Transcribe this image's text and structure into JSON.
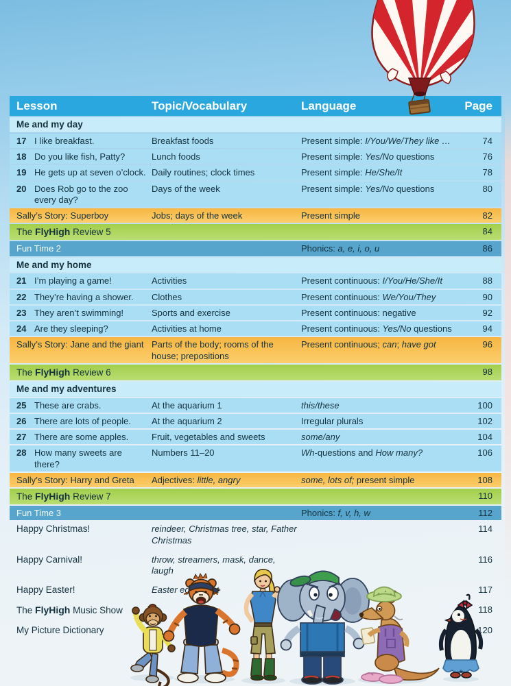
{
  "header": {
    "lesson": "Lesson",
    "topic": "Topic/Vocabulary",
    "language": "Language",
    "page": "Page"
  },
  "rows": [
    {
      "type": "section",
      "label": [
        {
          "t": "Me and my day"
        }
      ]
    },
    {
      "type": "lesson",
      "num": "17",
      "title": [
        {
          "t": "I like breakfast."
        }
      ],
      "topic": [
        {
          "t": "Breakfast foods"
        }
      ],
      "lang": [
        {
          "t": "Present simple: "
        },
        {
          "t": "I/You/We/They like …",
          "i": true
        }
      ],
      "page": "74"
    },
    {
      "type": "lesson",
      "num": "18",
      "title": [
        {
          "t": "Do you like fish, Patty?"
        }
      ],
      "topic": [
        {
          "t": "Lunch foods"
        }
      ],
      "lang": [
        {
          "t": "Present simple: "
        },
        {
          "t": "Yes/No",
          "i": true
        },
        {
          "t": " questions"
        }
      ],
      "page": "76"
    },
    {
      "type": "lesson",
      "num": "19",
      "title": [
        {
          "t": "He gets up at seven o’clock."
        }
      ],
      "topic": [
        {
          "t": "Daily routines; clock times"
        }
      ],
      "lang": [
        {
          "t": "Present simple: "
        },
        {
          "t": "He/She/It",
          "i": true
        }
      ],
      "page": "78"
    },
    {
      "type": "lesson",
      "num": "20",
      "title": [
        {
          "t": "Does Rob go to the zoo every day?"
        }
      ],
      "topic": [
        {
          "t": "Days of the week"
        }
      ],
      "lang": [
        {
          "t": "Present simple: "
        },
        {
          "t": "Yes/No",
          "i": true
        },
        {
          "t": " questions"
        }
      ],
      "page": "80"
    },
    {
      "type": "story",
      "label": [
        {
          "t": "Sally’s Story: Superboy"
        }
      ],
      "topic": [
        {
          "t": "Jobs; days of the week"
        }
      ],
      "lang": [
        {
          "t": "Present simple"
        }
      ],
      "page": "82"
    },
    {
      "type": "review",
      "label": [
        {
          "t": "The "
        },
        {
          "t": "FlyHigh",
          "b": true
        },
        {
          "t": " Review 5"
        }
      ],
      "page": "84"
    },
    {
      "type": "funtime",
      "label": [
        {
          "t": "Fun Time 2"
        }
      ],
      "lang": [
        {
          "t": "Phonics: "
        },
        {
          "t": "a, e, i, o, u",
          "i": true
        }
      ],
      "page": "86"
    },
    {
      "type": "section",
      "label": [
        {
          "t": "Me and my home"
        }
      ]
    },
    {
      "type": "lesson",
      "num": "21",
      "title": [
        {
          "t": "I’m playing a game!"
        }
      ],
      "topic": [
        {
          "t": "Activities"
        }
      ],
      "lang": [
        {
          "t": "Present continuous: "
        },
        {
          "t": "I/You/He/She/It",
          "i": true
        }
      ],
      "page": "88"
    },
    {
      "type": "lesson",
      "num": "22",
      "title": [
        {
          "t": "They’re having a shower."
        }
      ],
      "topic": [
        {
          "t": "Clothes"
        }
      ],
      "lang": [
        {
          "t": "Present continuous: "
        },
        {
          "t": "We/You/They",
          "i": true
        }
      ],
      "page": "90"
    },
    {
      "type": "lesson",
      "num": "23",
      "title": [
        {
          "t": "They aren’t swimming!"
        }
      ],
      "topic": [
        {
          "t": "Sports and exercise"
        }
      ],
      "lang": [
        {
          "t": "Present continuous: negative"
        }
      ],
      "page": "92"
    },
    {
      "type": "lesson",
      "num": "24",
      "title": [
        {
          "t": "Are they sleeping?"
        }
      ],
      "topic": [
        {
          "t": "Activities at home"
        }
      ],
      "lang": [
        {
          "t": "Present continuous: "
        },
        {
          "t": "Yes/No",
          "i": true
        },
        {
          "t": " questions"
        }
      ],
      "page": "94"
    },
    {
      "type": "story",
      "label": [
        {
          "t": "Sally’s Story: Jane and the giant"
        }
      ],
      "topic": [
        {
          "t": "Parts of the body; rooms of the house; prepositions"
        }
      ],
      "lang": [
        {
          "t": "Present continuous; "
        },
        {
          "t": "can",
          "i": true
        },
        {
          "t": "; "
        },
        {
          "t": "have got",
          "i": true
        }
      ],
      "page": "96"
    },
    {
      "type": "review",
      "label": [
        {
          "t": "The "
        },
        {
          "t": "FlyHigh",
          "b": true
        },
        {
          "t": " Review 6"
        }
      ],
      "page": "98"
    },
    {
      "type": "section",
      "label": [
        {
          "t": "Me and my adventures"
        }
      ]
    },
    {
      "type": "lesson",
      "num": "25",
      "title": [
        {
          "t": "These are crabs."
        }
      ],
      "topic": [
        {
          "t": "At the aquarium 1"
        }
      ],
      "lang": [
        {
          "t": "this/these",
          "i": true
        }
      ],
      "page": "100"
    },
    {
      "type": "lesson",
      "num": "26",
      "title": [
        {
          "t": "There are lots of people."
        }
      ],
      "topic": [
        {
          "t": "At the aquarium 2"
        }
      ],
      "lang": [
        {
          "t": "Irregular plurals"
        }
      ],
      "page": "102"
    },
    {
      "type": "lesson",
      "num": "27",
      "title": [
        {
          "t": "There are some apples."
        }
      ],
      "topic": [
        {
          "t": "Fruit, vegetables and sweets"
        }
      ],
      "lang": [
        {
          "t": "some/any",
          "i": true
        }
      ],
      "page": "104"
    },
    {
      "type": "lesson",
      "num": "28",
      "title": [
        {
          "t": "How many sweets are there?"
        }
      ],
      "topic": [
        {
          "t": "Numbers 11–20"
        }
      ],
      "lang": [
        {
          "t": "Wh",
          "i": true
        },
        {
          "t": "-questions and "
        },
        {
          "t": "How many?",
          "i": true
        }
      ],
      "page": "106"
    },
    {
      "type": "story",
      "label": [
        {
          "t": "Sally’s Story: Harry and Greta"
        }
      ],
      "topic": [
        {
          "t": "Adjectives: "
        },
        {
          "t": "little, angry",
          "i": true
        }
      ],
      "lang": [
        {
          "t": "some, lots of;",
          "i": true
        },
        {
          "t": " present simple"
        }
      ],
      "page": "108"
    },
    {
      "type": "review",
      "label": [
        {
          "t": "The "
        },
        {
          "t": "FlyHigh",
          "b": true
        },
        {
          "t": " Review 7"
        }
      ],
      "page": "110"
    },
    {
      "type": "funtime",
      "label": [
        {
          "t": "Fun Time 3"
        }
      ],
      "lang": [
        {
          "t": "Phonics: "
        },
        {
          "t": "f, v, h, w",
          "i": true
        }
      ],
      "page": "112"
    },
    {
      "type": "plain",
      "label": [
        {
          "t": "Happy Christmas!"
        }
      ],
      "topic": [
        {
          "t": "reindeer, Christmas tree, star, Father Christmas",
          "i": true
        }
      ],
      "page": "114"
    },
    {
      "type": "plain",
      "label": [
        {
          "t": "Happy Carnival!"
        }
      ],
      "topic": [
        {
          "t": "throw, streamers, mask, dance, laugh",
          "i": true
        }
      ],
      "page": "116"
    },
    {
      "type": "plain",
      "label": [
        {
          "t": "Happy Easter!"
        }
      ],
      "topic": [
        {
          "t": "Easter egg, paint",
          "i": true
        }
      ],
      "page": "117"
    },
    {
      "type": "plain",
      "label": [
        {
          "t": "The "
        },
        {
          "t": "FlyHigh",
          "b": true
        },
        {
          "t": " Music Show"
        }
      ],
      "page": "118"
    },
    {
      "type": "plain",
      "label": [
        {
          "t": "My Picture Dictionary"
        }
      ],
      "page": "120"
    }
  ],
  "colors": {
    "header_blue": "#29a7de",
    "lesson_row_blue": "#aadef4",
    "section_band_blue": "#c9ecfa",
    "story_amber": "#f9bf50",
    "review_green": "#abd45a",
    "funtime_blue": "#57a4cc",
    "balloon_red": "#d5252c"
  },
  "illustrations": {
    "balloon": "red-white-striped-hot-air-balloon",
    "characters": [
      "monkey",
      "tiger",
      "girl",
      "elephant",
      "kangaroo",
      "penguin"
    ]
  }
}
